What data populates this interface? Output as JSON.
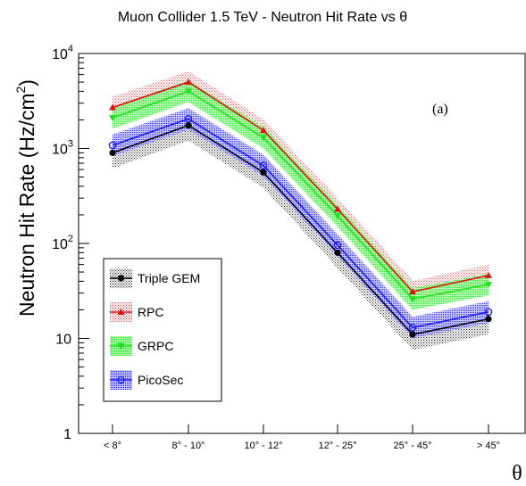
{
  "chart_data": {
    "type": "line",
    "title": "Muon Collider 1.5 TeV - Neutron Hit Rate vs θ",
    "xlabel": "θ",
    "ylabel_main": "Neutron Hit Rate (Hz/cm",
    "ylabel_sup": "2",
    "ylabel_close": ")",
    "annotation": "(a)",
    "y_scale": "log",
    "ylim": [
      1,
      10000
    ],
    "y_ticks": [
      {
        "value": 1,
        "label": "1"
      },
      {
        "value": 10,
        "label": "10"
      },
      {
        "value": 100,
        "base": "10",
        "exp": "2"
      },
      {
        "value": 1000,
        "base": "10",
        "exp": "3"
      },
      {
        "value": 10000,
        "base": "10",
        "exp": "4"
      }
    ],
    "categories": [
      "< 8°",
      "8° - 10°",
      "10° - 12°",
      "12° - 25°",
      "25° - 45°",
      "> 45°"
    ],
    "legend_position": "bottom-left",
    "grid": false,
    "series": [
      {
        "name": "Triple GEM",
        "color": "#000000",
        "marker": "filled-circle",
        "values": [
          900,
          1750,
          560,
          80,
          11,
          16
        ],
        "band_factor": 1.45
      },
      {
        "name": "RPC",
        "color": "#dd1111",
        "marker": "filled-triangle-up",
        "values": [
          2700,
          5000,
          1550,
          230,
          31,
          46
        ],
        "band_factor": 1.3
      },
      {
        "name": "GRPC",
        "color": "#22dd22",
        "marker": "filled-triangle-down",
        "values": [
          2100,
          4000,
          1300,
          195,
          26,
          37
        ],
        "band_factor": 1.3
      },
      {
        "name": "PicoSec",
        "color": "#1a1aee",
        "marker": "open-circle",
        "values": [
          1080,
          2050,
          660,
          96,
          13,
          19
        ],
        "band_factor": 1.3
      }
    ]
  }
}
